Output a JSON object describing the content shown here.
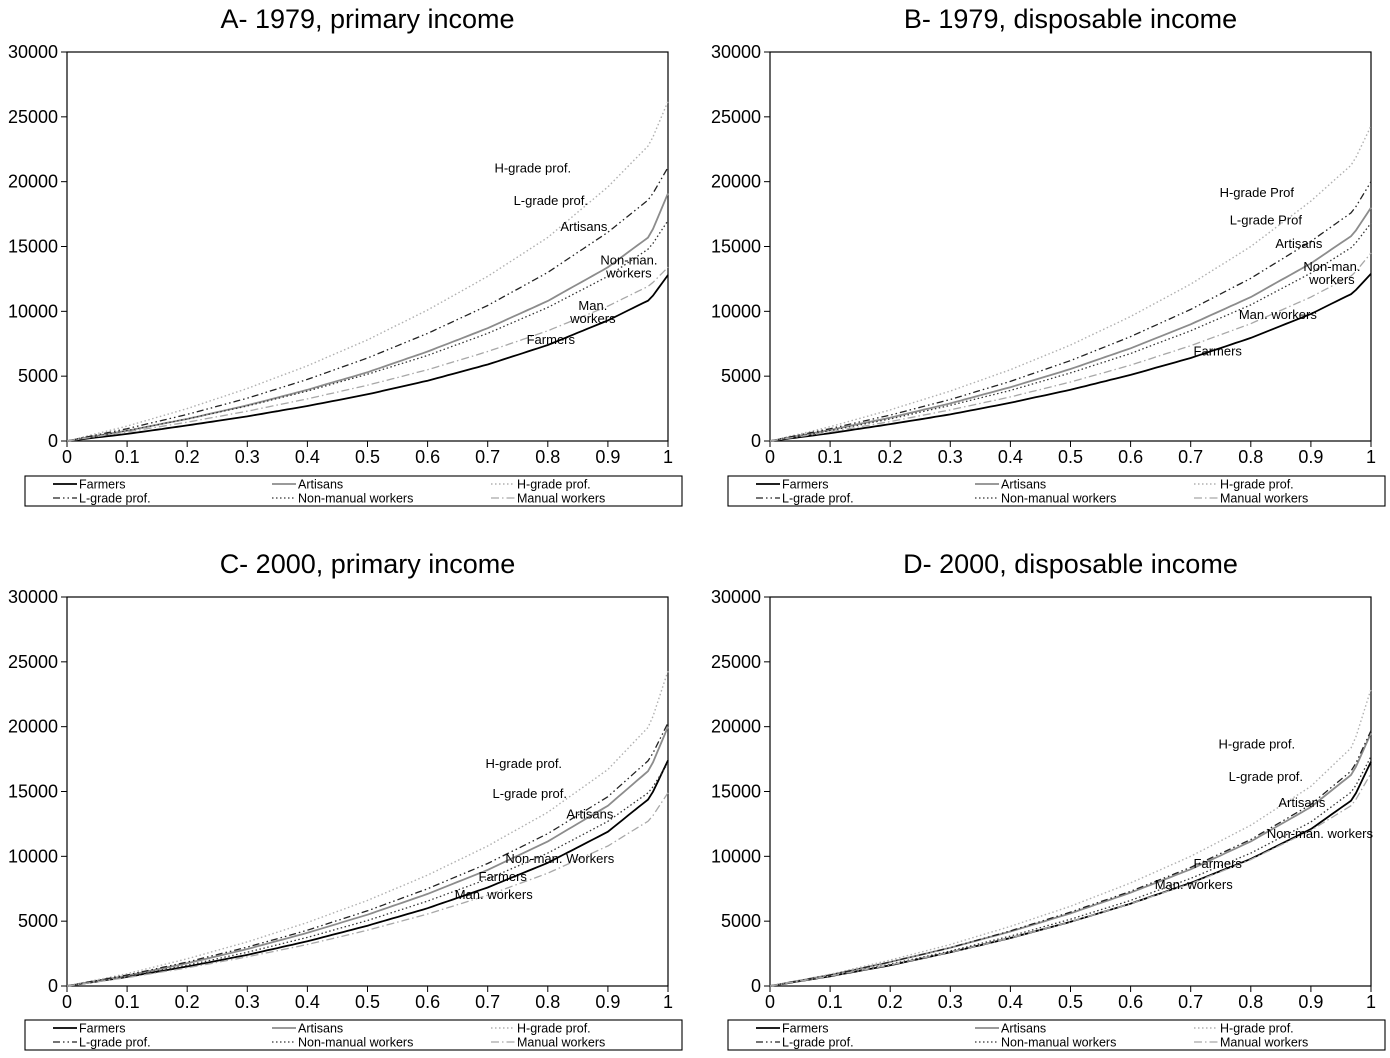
{
  "series_styles": [
    {
      "key": "farmers",
      "color": "#000000",
      "dash": "",
      "width": 1.8
    },
    {
      "key": "artisans",
      "color": "#8c8c8c",
      "dash": "",
      "width": 1.8
    },
    {
      "key": "hgrade",
      "color": "#b0b0b0",
      "dash": "1.5 2.5",
      "width": 1.4
    },
    {
      "key": "lgrade",
      "color": "#222222",
      "dash": "7 3 1.5 3 1.5 3",
      "width": 1.3
    },
    {
      "key": "nonmanual",
      "color": "#333333",
      "dash": "1.5 2.5",
      "width": 1.3
    },
    {
      "key": "manual",
      "color": "#a8a8a8",
      "dash": "8 3 1.5 3",
      "width": 1.3
    }
  ],
  "chart_data": [
    {
      "type": "line",
      "title": "A- 1979, primary income",
      "xlim": [
        0,
        1
      ],
      "ylim": [
        0,
        30000
      ],
      "xticks": [
        "0",
        "0.1",
        "0.2",
        "0.3",
        "0.4",
        "0.5",
        "0.6",
        "0.7",
        "0.8",
        "0.9",
        "1"
      ],
      "yticks": [
        "0",
        "5000",
        "10000",
        "15000",
        "20000",
        "25000",
        "30000"
      ],
      "x": [
        0,
        0.1,
        0.2,
        0.3,
        0.4,
        0.5,
        0.6,
        0.7,
        0.8,
        0.9,
        0.97,
        1
      ],
      "series": [
        {
          "name": "Farmers",
          "key": "farmers",
          "values": [
            0,
            550,
            1200,
            1900,
            2700,
            3600,
            4650,
            5900,
            7400,
            9300,
            10900,
            12800
          ]
        },
        {
          "name": "Artisans",
          "key": "artisans",
          "values": [
            0,
            800,
            1700,
            2750,
            3950,
            5300,
            6900,
            8700,
            10800,
            13400,
            15800,
            19100
          ]
        },
        {
          "name": "H-grade prof.",
          "key": "hgrade",
          "values": [
            0,
            1150,
            2500,
            4050,
            5800,
            7800,
            10100,
            12700,
            15700,
            19600,
            22900,
            26200
          ]
        },
        {
          "name": "L-grade prof.",
          "key": "lgrade",
          "values": [
            0,
            950,
            2050,
            3300,
            4750,
            6400,
            8300,
            10450,
            13000,
            16100,
            18700,
            21100
          ]
        },
        {
          "name": "Non-manual workers",
          "key": "nonmanual",
          "values": [
            0,
            800,
            1700,
            2700,
            3850,
            5150,
            6600,
            8300,
            10300,
            12700,
            14900,
            17000
          ]
        },
        {
          "name": "Manual workers",
          "key": "manual",
          "values": [
            0,
            700,
            1450,
            2300,
            3250,
            4300,
            5500,
            6900,
            8500,
            10400,
            12000,
            13400
          ]
        }
      ],
      "annotations": [
        {
          "lines": [
            "H-grade prof."
          ],
          "x": 0.775,
          "y": 20700
        },
        {
          "lines": [
            "L-grade prof."
          ],
          "x": 0.805,
          "y": 18200
        },
        {
          "lines": [
            "Artisans"
          ],
          "x": 0.86,
          "y": 16200
        },
        {
          "lines": [
            "Non-man.",
            "workers"
          ],
          "x": 0.935,
          "y": 13600
        },
        {
          "lines": [
            "Man.",
            "workers"
          ],
          "x": 0.875,
          "y": 10100
        },
        {
          "lines": [
            "Farmers"
          ],
          "x": 0.805,
          "y": 7500
        }
      ],
      "legend": [
        "Farmers",
        "Artisans",
        "H-grade prof.",
        "L-grade prof.",
        "Non-manual workers",
        "Manual workers"
      ]
    },
    {
      "type": "line",
      "title": "B- 1979, disposable income",
      "xlim": [
        0,
        1
      ],
      "ylim": [
        0,
        30000
      ],
      "xticks": [
        "0",
        "0.1",
        "0.2",
        "0.3",
        "0.4",
        "0.5",
        "0.6",
        "0.7",
        "0.8",
        "0.9",
        "1"
      ],
      "yticks": [
        "0",
        "5000",
        "10000",
        "15000",
        "20000",
        "25000",
        "30000"
      ],
      "x": [
        0,
        0.1,
        0.2,
        0.3,
        0.4,
        0.5,
        0.6,
        0.7,
        0.8,
        0.9,
        0.97,
        1
      ],
      "series": [
        {
          "name": "Farmers",
          "key": "farmers",
          "values": [
            0,
            600,
            1300,
            2050,
            2950,
            3950,
            5100,
            6400,
            7950,
            9800,
            11400,
            12900
          ]
        },
        {
          "name": "Artisans",
          "key": "artisans",
          "values": [
            0,
            850,
            1800,
            2900,
            4150,
            5550,
            7150,
            9000,
            11100,
            13700,
            15900,
            18000
          ]
        },
        {
          "name": "H-grade prof.",
          "key": "hgrade",
          "values": [
            0,
            1100,
            2400,
            3850,
            5500,
            7400,
            9600,
            12100,
            15000,
            18500,
            21400,
            24300
          ]
        },
        {
          "name": "L-grade prof.",
          "key": "lgrade",
          "values": [
            0,
            950,
            2000,
            3200,
            4600,
            6200,
            8050,
            10150,
            12550,
            15400,
            17700,
            20000
          ]
        },
        {
          "name": "Non-manual workers",
          "key": "nonmanual",
          "values": [
            0,
            800,
            1700,
            2750,
            3900,
            5250,
            6750,
            8500,
            10500,
            12950,
            15000,
            16800
          ]
        },
        {
          "name": "Manual workers",
          "key": "manual",
          "values": [
            0,
            700,
            1500,
            2400,
            3400,
            4550,
            5850,
            7350,
            9050,
            11100,
            12800,
            14500
          ]
        }
      ],
      "annotations": [
        {
          "lines": [
            "H-grade Prof"
          ],
          "x": 0.81,
          "y": 18800
        },
        {
          "lines": [
            "L-grade Prof"
          ],
          "x": 0.825,
          "y": 16700
        },
        {
          "lines": [
            "Artisans"
          ],
          "x": 0.88,
          "y": 14900
        },
        {
          "lines": [
            "Non-man.",
            "workers"
          ],
          "x": 0.935,
          "y": 13100
        },
        {
          "lines": [
            "Man. workers"
          ],
          "x": 0.845,
          "y": 9400
        },
        {
          "lines": [
            "Farmers"
          ],
          "x": 0.745,
          "y": 6600
        }
      ],
      "legend": [
        "Farmers",
        "Artisans",
        "H-grade prof.",
        "L-grade prof.",
        "Non-manual workers",
        "Manual workers"
      ]
    },
    {
      "type": "line",
      "title": "C- 2000, primary income",
      "xlim": [
        0,
        1
      ],
      "ylim": [
        0,
        30000
      ],
      "xticks": [
        "0",
        "0.1",
        "0.2",
        "0.3",
        "0.4",
        "0.5",
        "0.6",
        "0.7",
        "0.8",
        "0.9",
        "1"
      ],
      "yticks": [
        "0",
        "5000",
        "10000",
        "15000",
        "20000",
        "25000",
        "30000"
      ],
      "x": [
        0,
        0.1,
        0.2,
        0.3,
        0.4,
        0.5,
        0.6,
        0.7,
        0.8,
        0.9,
        0.97,
        1
      ],
      "series": [
        {
          "name": "Farmers",
          "key": "farmers",
          "values": [
            0,
            700,
            1500,
            2400,
            3450,
            4650,
            6000,
            7600,
            9500,
            11900,
            14500,
            17400
          ]
        },
        {
          "name": "Artisans",
          "key": "artisans",
          "values": [
            0,
            800,
            1750,
            2850,
            4100,
            5500,
            7100,
            8950,
            11150,
            13900,
            16700,
            20000
          ]
        },
        {
          "name": "H-grade prof.",
          "key": "hgrade",
          "values": [
            0,
            950,
            2100,
            3400,
            4900,
            6600,
            8550,
            10800,
            13400,
            16700,
            20100,
            24300
          ]
        },
        {
          "name": "L-grade prof.",
          "key": "lgrade",
          "values": [
            0,
            850,
            1850,
            3000,
            4300,
            5800,
            7500,
            9450,
            11750,
            14600,
            17500,
            20300
          ]
        },
        {
          "name": "Non-manual workers",
          "key": "nonmanual",
          "values": [
            0,
            750,
            1600,
            2600,
            3750,
            5050,
            6550,
            8250,
            10250,
            12700,
            15000,
            17200
          ]
        },
        {
          "name": "Manual workers",
          "key": "manual",
          "values": [
            0,
            650,
            1400,
            2250,
            3200,
            4300,
            5550,
            7000,
            8700,
            10800,
            12800,
            14900
          ]
        }
      ],
      "annotations": [
        {
          "lines": [
            "H-grade prof."
          ],
          "x": 0.76,
          "y": 16800
        },
        {
          "lines": [
            "L-grade prof."
          ],
          "x": 0.77,
          "y": 14500
        },
        {
          "lines": [
            "Artisans"
          ],
          "x": 0.87,
          "y": 12900
        },
        {
          "lines": [
            "Non-man. Workers"
          ],
          "x": 0.82,
          "y": 9500
        },
        {
          "lines": [
            "Farmers"
          ],
          "x": 0.725,
          "y": 8100
        },
        {
          "lines": [
            "Man. workers"
          ],
          "x": 0.71,
          "y": 6700
        }
      ],
      "legend": [
        "Farmers",
        "Artisans",
        "H-grade prof.",
        "L-grade prof.",
        "Non-manual workers",
        "Manual workers"
      ]
    },
    {
      "type": "line",
      "title": "D- 2000, disposable income",
      "xlim": [
        0,
        1
      ],
      "ylim": [
        0,
        30000
      ],
      "xticks": [
        "0",
        "0.1",
        "0.2",
        "0.3",
        "0.4",
        "0.5",
        "0.6",
        "0.7",
        "0.8",
        "0.9",
        "1"
      ],
      "yticks": [
        "0",
        "5000",
        "10000",
        "15000",
        "20000",
        "25000",
        "30000"
      ],
      "x": [
        0,
        0.1,
        0.2,
        0.3,
        0.4,
        0.5,
        0.6,
        0.7,
        0.8,
        0.9,
        0.97,
        1
      ],
      "series": [
        {
          "name": "Farmers",
          "key": "farmers",
          "values": [
            0,
            750,
            1600,
            2600,
            3700,
            4950,
            6350,
            7950,
            9800,
            12100,
            14400,
            17300
          ]
        },
        {
          "name": "Artisans",
          "key": "artisans",
          "values": [
            0,
            850,
            1850,
            2950,
            4200,
            5600,
            7200,
            9000,
            11150,
            13800,
            16400,
            19500
          ]
        },
        {
          "name": "H-grade prof.",
          "key": "hgrade",
          "values": [
            0,
            900,
            2000,
            3200,
            4600,
            6150,
            7950,
            10000,
            12400,
            15400,
            18500,
            22900
          ]
        },
        {
          "name": "L-grade prof.",
          "key": "lgrade",
          "values": [
            0,
            850,
            1850,
            2950,
            4250,
            5700,
            7300,
            9150,
            11300,
            14000,
            16700,
            19700
          ]
        },
        {
          "name": "Non-manual workers",
          "key": "nonmanual",
          "values": [
            0,
            780,
            1680,
            2700,
            3850,
            5150,
            6600,
            8300,
            10250,
            12650,
            15050,
            17700
          ]
        },
        {
          "name": "Manual workers",
          "key": "manual",
          "values": [
            0,
            760,
            1620,
            2600,
            3700,
            4950,
            6350,
            7900,
            9750,
            12000,
            14000,
            16400
          ]
        }
      ],
      "annotations": [
        {
          "lines": [
            "H-grade prof."
          ],
          "x": 0.81,
          "y": 18300
        },
        {
          "lines": [
            "L-grade prof."
          ],
          "x": 0.825,
          "y": 15800
        },
        {
          "lines": [
            "Artisans"
          ],
          "x": 0.885,
          "y": 13800
        },
        {
          "lines": [
            "Non-man. workers"
          ],
          "x": 0.915,
          "y": 11400
        },
        {
          "lines": [
            "Farmers"
          ],
          "x": 0.745,
          "y": 9100
        },
        {
          "lines": [
            "Man. workers"
          ],
          "x": 0.705,
          "y": 7500
        }
      ],
      "legend": [
        "Farmers",
        "Artisans",
        "H-grade prof.",
        "L-grade prof.",
        "Non-manual workers",
        "Manual workers"
      ]
    }
  ]
}
